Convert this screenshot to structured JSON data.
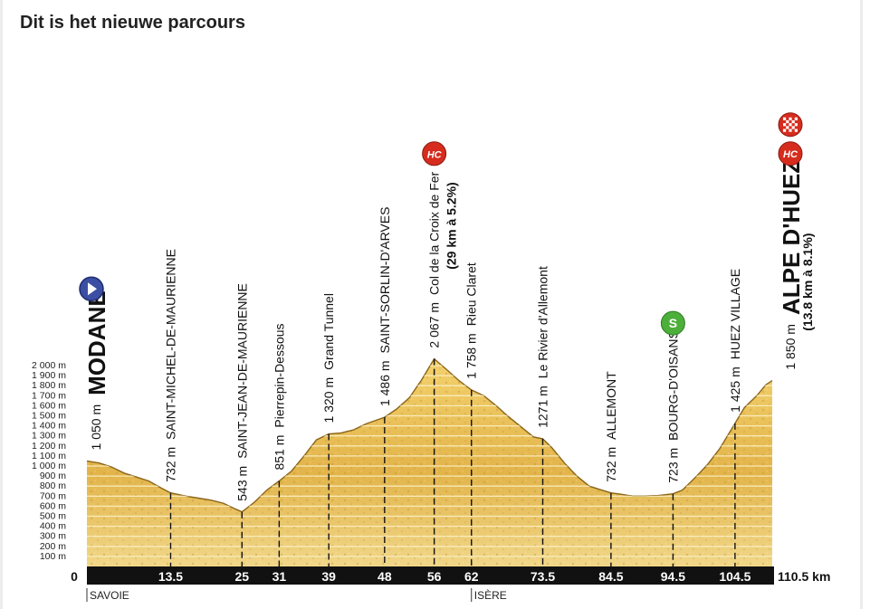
{
  "header": {
    "title": "Dit is het nieuwe parcours"
  },
  "colors": {
    "profile_fill": "#e3b64a",
    "profile_top": "#f6e08a",
    "axis_bar": "#111111",
    "hc_badge": "#d62c1e",
    "start_badge": "#3d4fa3",
    "sprint_badge": "#4caf3a"
  },
  "chart_data": {
    "type": "area",
    "ylabel_unit": "m",
    "ylim": [
      0,
      2000
    ],
    "yticks": [
      {
        "v": 100,
        "label": "100 m"
      },
      {
        "v": 200,
        "label": "200 m"
      },
      {
        "v": 300,
        "label": "300 m"
      },
      {
        "v": 400,
        "label": "400 m"
      },
      {
        "v": 500,
        "label": "500 m"
      },
      {
        "v": 600,
        "label": "600 m"
      },
      {
        "v": 700,
        "label": "700 m"
      },
      {
        "v": 800,
        "label": "800 m"
      },
      {
        "v": 900,
        "label": "900 m"
      },
      {
        "v": 1000,
        "label": "1 000 m"
      },
      {
        "v": 1100,
        "label": "1 100 m"
      },
      {
        "v": 1200,
        "label": "1 200 m"
      },
      {
        "v": 1300,
        "label": "1 300 m"
      },
      {
        "v": 1400,
        "label": "1 400 m"
      },
      {
        "v": 1500,
        "label": "1 500 m"
      },
      {
        "v": 1600,
        "label": "1 600 m"
      },
      {
        "v": 1700,
        "label": "1 700 m"
      },
      {
        "v": 1800,
        "label": "1 800 m"
      },
      {
        "v": 1900,
        "label": "1 900 m"
      },
      {
        "v": 2000,
        "label": "2 000 m"
      }
    ],
    "xlim": [
      0,
      110.5
    ],
    "x_origin_label": "0",
    "x_end_label": "110.5 km",
    "profile": [
      [
        0,
        1050
      ],
      [
        2,
        1030
      ],
      [
        4,
        990
      ],
      [
        6,
        930
      ],
      [
        8,
        890
      ],
      [
        10,
        850
      ],
      [
        12,
        780
      ],
      [
        13.5,
        732
      ],
      [
        16,
        700
      ],
      [
        18,
        680
      ],
      [
        20,
        660
      ],
      [
        22,
        630
      ],
      [
        24,
        570
      ],
      [
        25,
        543
      ],
      [
        27,
        640
      ],
      [
        29,
        760
      ],
      [
        31,
        851
      ],
      [
        33,
        950
      ],
      [
        35,
        1100
      ],
      [
        37,
        1260
      ],
      [
        39,
        1320
      ],
      [
        41,
        1330
      ],
      [
        43,
        1360
      ],
      [
        45,
        1420
      ],
      [
        48,
        1486
      ],
      [
        50,
        1570
      ],
      [
        52,
        1680
      ],
      [
        54,
        1860
      ],
      [
        56,
        2067
      ],
      [
        58,
        1960
      ],
      [
        60,
        1850
      ],
      [
        62,
        1758
      ],
      [
        64,
        1700
      ],
      [
        66,
        1600
      ],
      [
        68,
        1490
      ],
      [
        70,
        1390
      ],
      [
        72,
        1290
      ],
      [
        73.5,
        1271
      ],
      [
        75,
        1180
      ],
      [
        77,
        1030
      ],
      [
        79,
        900
      ],
      [
        81,
        800
      ],
      [
        83,
        760
      ],
      [
        84.5,
        732
      ],
      [
        86,
        720
      ],
      [
        88,
        700
      ],
      [
        90,
        700
      ],
      [
        92,
        705
      ],
      [
        94.5,
        723
      ],
      [
        96,
        760
      ],
      [
        98,
        880
      ],
      [
        100,
        1010
      ],
      [
        102,
        1170
      ],
      [
        104.5,
        1425
      ],
      [
        106,
        1580
      ],
      [
        108,
        1700
      ],
      [
        109.5,
        1810
      ],
      [
        110.5,
        1850
      ]
    ],
    "points": [
      {
        "km": 0,
        "alt": 1050,
        "alt_label": "1 050 m",
        "name": "",
        "name_bold": "MODANE",
        "marker": "start",
        "km_label": ""
      },
      {
        "km": 13.5,
        "alt": 732,
        "alt_label": "732 m",
        "name": "SAINT-MICHEL-DE-MAURIENNE",
        "km_label": "13.5"
      },
      {
        "km": 25,
        "alt": 543,
        "alt_label": "543 m",
        "name": "SAINT-JEAN-DE-MAURIENNE",
        "km_label": "25"
      },
      {
        "km": 31,
        "alt": 851,
        "alt_label": "851 m",
        "name": "Pierrepin-Dessous",
        "km_label": "31"
      },
      {
        "km": 39,
        "alt": 1320,
        "alt_label": "1 320 m",
        "name": "Grand Tunnel",
        "km_label": "39"
      },
      {
        "km": 48,
        "alt": 1486,
        "alt_label": "1 486 m",
        "name": "SAINT-SORLIN-D'ARVES",
        "km_label": "48"
      },
      {
        "km": 56,
        "alt": 2067,
        "alt_label": "2 067 m",
        "name": "Col de la Croix de Fer",
        "subtitle": "(29 km à 5.2%)",
        "marker": "hc",
        "km_label": "56"
      },
      {
        "km": 62,
        "alt": 1758,
        "alt_label": "1 758 m",
        "name": "Rieu Claret",
        "km_label": "62"
      },
      {
        "km": 73.5,
        "alt": 1271,
        "alt_label": "1271 m",
        "name": "Le Rivier d'Allemont",
        "km_label": "73.5"
      },
      {
        "km": 84.5,
        "alt": 732,
        "alt_label": "732 m",
        "name": "ALLEMONT",
        "km_label": "84.5"
      },
      {
        "km": 94.5,
        "alt": 723,
        "alt_label": "723 m",
        "name": "BOURG-D'OISANS",
        "marker": "sprint",
        "km_label": "94.5"
      },
      {
        "km": 104.5,
        "alt": 1425,
        "alt_label": "1 425 m",
        "name": "HUEZ VILLAGE",
        "km_label": "104.5"
      },
      {
        "km": 110.5,
        "alt": 1850,
        "alt_label": "1 850 m",
        "name": "",
        "name_bold": "ALPE D'HUEZ",
        "subtitle": "(13.8 km à 8.1%)",
        "marker": "finish",
        "km_label": ""
      }
    ],
    "badges": {
      "hc": "HC",
      "sprint": "S"
    },
    "regions": [
      {
        "km": 0,
        "label": "SAVOIE"
      },
      {
        "km": 62,
        "label": "ISÈRE"
      }
    ]
  }
}
